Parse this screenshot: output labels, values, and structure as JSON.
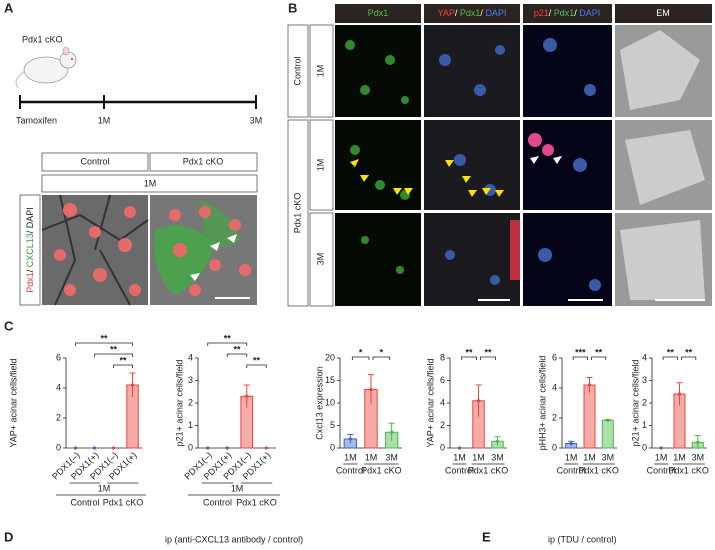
{
  "panel_labels": [
    "A",
    "B",
    "C",
    "D",
    "E"
  ],
  "panel_a": {
    "title": "Pdx1 cKO",
    "timeline": [
      "Tamoxifen",
      "1M",
      "3M"
    ],
    "columns": [
      "Control",
      "Pdx1 cKO"
    ],
    "time": "1M",
    "stain": [
      "Pdx1",
      "/ ",
      "CXCL13",
      "/ ",
      "DAPI"
    ],
    "stain_colors": [
      "#e23a3a",
      "#222222",
      "#2a9a3a",
      "#222222",
      "#222222"
    ]
  },
  "panel_b": {
    "headers": [
      [
        "Pdx1"
      ],
      [
        "YAP",
        "/ ",
        "Pdx1",
        "/ ",
        "DAPI"
      ],
      [
        "p21",
        "/ ",
        "Pdx1",
        "/ ",
        "DAPI"
      ],
      [
        "EM"
      ]
    ],
    "header_colors": [
      [
        "#4cc24c"
      ],
      [
        "#ff4040",
        "#ffffff",
        "#4cc24c",
        "#ffffff",
        "#4a7cff"
      ],
      [
        "#ff4040",
        "#ffffff",
        "#4cc24c",
        "#ffffff",
        "#4a7cff"
      ],
      [
        "#ffffff"
      ]
    ],
    "groups": [
      "Control",
      "Pdx1 cKO"
    ],
    "rows": [
      "1M",
      "1M",
      "3M"
    ]
  },
  "chart_data": [
    {
      "type": "bar",
      "ylabel": "YAP+ acinar cells/field",
      "categories": [
        "PDX1(–)",
        "PDX1(+)",
        "PDX1(–)",
        "PDX1(+)"
      ],
      "values": [
        0,
        0,
        0,
        4.2
      ],
      "errors": [
        0,
        0,
        0,
        0.8
      ],
      "colors": [
        "#3a66c4",
        "#3a66c4",
        "#e8453c",
        "#e8453c"
      ],
      "period": "1M",
      "group_labels": [
        "Control",
        "Pdx1 cKO"
      ],
      "ylim": [
        0,
        6
      ],
      "yticks": [
        0,
        2,
        4,
        6
      ],
      "significance": [
        "**",
        "**",
        "**"
      ]
    },
    {
      "type": "bar",
      "ylabel": "p21+ acinar cells/field",
      "categories": [
        "PDX1(–)",
        "PDX1(+)",
        "PDX1(–)",
        "PDX1(+)"
      ],
      "values": [
        0,
        0,
        2.3,
        0
      ],
      "errors": [
        0,
        0,
        0.5,
        0
      ],
      "colors": [
        "#3a66c4",
        "#3a66c4",
        "#e8453c",
        "#e8453c"
      ],
      "period": "1M",
      "group_labels": [
        "Control",
        "Pdx1 cKO"
      ],
      "ylim": [
        0,
        4
      ],
      "yticks": [
        0,
        1,
        2,
        3,
        4
      ],
      "significance": [
        "**",
        "**",
        "**"
      ]
    },
    {
      "type": "bar",
      "ylabel": "Cxcl13 expression",
      "categories": [
        "1M",
        "1M",
        "3M"
      ],
      "values": [
        2,
        13,
        3.5
      ],
      "errors": [
        1,
        3.3,
        2
      ],
      "colors": [
        "#3a66c4",
        "#e8453c",
        "#4cb648"
      ],
      "group_labels": [
        "Control",
        "Pdx1 cKO"
      ],
      "ylim": [
        0,
        20
      ],
      "yticks": [
        0,
        5,
        10,
        15,
        20
      ],
      "significance": [
        "*",
        "*"
      ]
    },
    {
      "type": "bar",
      "ylabel": "YAP+ acinar cells/field",
      "categories": [
        "1M",
        "1M",
        "3M"
      ],
      "values": [
        0,
        4.2,
        0.6
      ],
      "errors": [
        0,
        1.4,
        0.4
      ],
      "colors": [
        "#3a66c4",
        "#e8453c",
        "#4cb648"
      ],
      "group_labels": [
        "Control",
        "Pdx1 cKO"
      ],
      "ylim": [
        0,
        8
      ],
      "yticks": [
        0,
        2,
        4,
        6,
        8
      ],
      "significance": [
        "**",
        "**"
      ]
    },
    {
      "type": "bar",
      "ylabel": "pHH3+ acinar cells/field",
      "categories": [
        "1M",
        "1M",
        "3M"
      ],
      "values": [
        0.3,
        4.2,
        1.85
      ],
      "errors": [
        0.15,
        0.5,
        0.05
      ],
      "colors": [
        "#3a66c4",
        "#e8453c",
        "#4cb648"
      ],
      "group_labels": [
        "Control",
        "Pdx1 cKO"
      ],
      "ylim": [
        0,
        6
      ],
      "yticks": [
        0,
        2,
        4,
        6
      ],
      "significance": [
        "***",
        "**"
      ]
    },
    {
      "type": "bar",
      "ylabel": "p21+ acinar cells/field",
      "categories": [
        "1M",
        "1M",
        "3M"
      ],
      "values": [
        0,
        2.4,
        0.25
      ],
      "errors": [
        0,
        0.5,
        0.3
      ],
      "colors": [
        "#3a66c4",
        "#e8453c",
        "#4cb648"
      ],
      "group_labels": [
        "Control",
        "Pdx1 cKO"
      ],
      "ylim": [
        0,
        4
      ],
      "yticks": [
        0,
        1,
        2,
        3,
        4
      ],
      "significance": [
        "**",
        "**"
      ]
    }
  ],
  "panel_d": {
    "title": "ip (anti-CXCL13 antibody / control)"
  },
  "panel_e": {
    "title": "ip (TDU / control)"
  }
}
